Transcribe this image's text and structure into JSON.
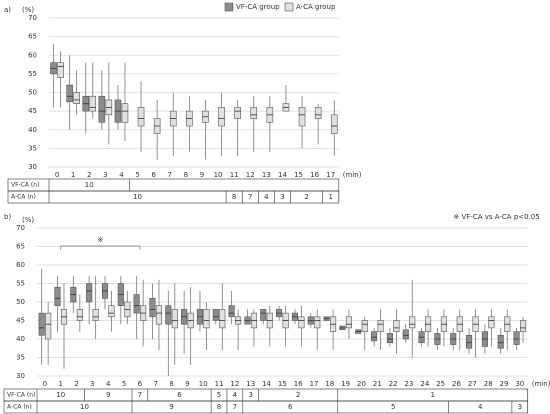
{
  "chart_data": [
    {
      "type": "box",
      "panel": "a)",
      "ylabel": "(%)",
      "xlabel": "(min)",
      "ylim": [
        30,
        70
      ],
      "yticks": [
        30,
        35,
        40,
        45,
        50,
        55,
        60,
        65,
        70
      ],
      "grid": true,
      "legend": "top",
      "categories": [
        "0",
        "1",
        "2",
        "3",
        "4",
        "5",
        "6",
        "7",
        "8",
        "9",
        "10",
        "11",
        "12",
        "13",
        "14",
        "15",
        "16",
        "17"
      ],
      "series": [
        {
          "name": "VF-CA group",
          "color": "#8c8c8c",
          "values": [
            {
              "min": 46,
              "q1": 55,
              "median": 56.5,
              "q3": 58,
              "max": 63
            },
            {
              "min": 40,
              "q1": 47.5,
              "median": 49,
              "q3": 52,
              "max": 60
            },
            {
              "min": 39,
              "q1": 45,
              "median": 47,
              "q3": 49,
              "max": 58
            },
            {
              "min": 40,
              "q1": 42,
              "median": 45,
              "q3": 49,
              "max": 56
            },
            {
              "min": 40,
              "q1": 42,
              "median": 45,
              "q3": 48,
              "max": 52
            },
            null,
            null,
            null,
            null,
            null,
            null,
            null,
            null,
            null,
            null,
            null,
            null,
            null
          ]
        },
        {
          "name": "A-CA group",
          "color": "#e0e0e0",
          "values": [
            {
              "min": 46,
              "q1": 54,
              "median": 57,
              "q3": 58,
              "max": 61
            },
            {
              "min": 44,
              "q1": 47,
              "median": 48,
              "q3": 50,
              "max": 56
            },
            {
              "min": 43,
              "q1": 45,
              "median": 46,
              "q3": 49,
              "max": 58
            },
            {
              "min": 36,
              "q1": 44,
              "median": 46,
              "q3": 48,
              "max": 58
            },
            {
              "min": 37,
              "q1": 42,
              "median": 45,
              "q3": 47,
              "max": 58
            },
            {
              "min": 34,
              "q1": 41,
              "median": 43,
              "q3": 46,
              "max": 53
            },
            {
              "min": 32,
              "q1": 39,
              "median": 41,
              "q3": 43,
              "max": 48
            },
            {
              "min": 33,
              "q1": 41,
              "median": 43,
              "q3": 45,
              "max": 50
            },
            {
              "min": 34,
              "q1": 41,
              "median": 43,
              "q3": 45,
              "max": 49
            },
            {
              "min": 32,
              "q1": 42,
              "median": 43.5,
              "q3": 45,
              "max": 48
            },
            {
              "min": 33,
              "q1": 41,
              "median": 43,
              "q3": 46,
              "max": 50
            },
            {
              "min": 33,
              "q1": 43,
              "median": 45,
              "q3": 46,
              "max": 48
            },
            {
              "min": 34,
              "q1": 43,
              "median": 44,
              "q3": 46,
              "max": 49
            },
            {
              "min": 34,
              "q1": 42,
              "median": 44,
              "q3": 46,
              "max": 49
            },
            {
              "min": 45,
              "q1": 45,
              "median": 46,
              "q3": 47,
              "max": 52
            },
            {
              "min": 35,
              "q1": 41,
              "median": 44,
              "q3": 46,
              "max": 49
            },
            {
              "min": 36,
              "q1": 43,
              "median": 44,
              "q3": 46,
              "max": 47
            },
            {
              "min": 33,
              "q1": 39,
              "median": 41,
              "q3": 44,
              "max": 48
            }
          ]
        }
      ],
      "table": [
        {
          "label": "VF-CA (n)",
          "cells": [
            {
              "text": "10",
              "from": "0",
              "to": "4"
            }
          ]
        },
        {
          "label": "A-CA (n)",
          "cells": [
            {
              "text": "10",
              "from": "0",
              "to": "10"
            },
            {
              "text": "8",
              "from": "11",
              "to": "11"
            },
            {
              "text": "7",
              "from": "12",
              "to": "12"
            },
            {
              "text": "4",
              "from": "13",
              "to": "13"
            },
            {
              "text": "3",
              "from": "14",
              "to": "14"
            },
            {
              "text": "2",
              "from": "15",
              "to": "16"
            },
            {
              "text": "1",
              "from": "17",
              "to": "17"
            }
          ]
        }
      ]
    },
    {
      "type": "box",
      "panel": "b)",
      "ylabel": "(%)",
      "xlabel": "(min)",
      "note": "※ VF-CA vs A-CA  p<0.05",
      "ylim": [
        30,
        70
      ],
      "yticks": [
        30,
        35,
        40,
        45,
        50,
        55,
        60,
        65,
        70
      ],
      "grid": true,
      "bracket": {
        "text": "※",
        "from": "1",
        "to": "6"
      },
      "categories": [
        "0",
        "1",
        "2",
        "3",
        "4",
        "5",
        "6",
        "7",
        "8",
        "9",
        "10",
        "11",
        "12",
        "13",
        "14",
        "15",
        "16",
        "17",
        "18",
        "19",
        "20",
        "21",
        "22",
        "23",
        "24",
        "25",
        "26",
        "27",
        "28",
        "29",
        "30"
      ],
      "series": [
        {
          "color": "#8c8c8c",
          "values": [
            {
              "min": 33,
              "q1": 41,
              "median": 43,
              "q3": 47,
              "max": 59
            },
            {
              "min": 42,
              "q1": 49,
              "median": 51,
              "q3": 54,
              "max": 57
            },
            {
              "min": 47,
              "q1": 50,
              "median": 52,
              "q3": 54,
              "max": 57
            },
            {
              "min": 44,
              "q1": 50,
              "median": 53,
              "q3": 55,
              "max": 57
            },
            {
              "min": 48,
              "q1": 51,
              "median": 53,
              "q3": 55,
              "max": 57
            },
            {
              "min": 44,
              "q1": 49,
              "median": 52,
              "q3": 55,
              "max": 57
            },
            {
              "min": 40,
              "q1": 47,
              "median": 49,
              "q3": 52,
              "max": 57
            },
            {
              "min": 40,
              "q1": 46,
              "median": 48,
              "q3": 51,
              "max": 55
            },
            {
              "min": 30,
              "q1": 44,
              "median": 47,
              "q3": 49,
              "max": 53
            },
            {
              "min": 36,
              "q1": 44,
              "median": 46,
              "q3": 48,
              "max": 53
            },
            {
              "min": 42,
              "q1": 44,
              "median": 46,
              "q3": 48,
              "max": 53
            },
            {
              "min": 44,
              "q1": 45,
              "median": 46,
              "q3": 48,
              "max": 48
            },
            {
              "min": 44,
              "q1": 46,
              "median": 47,
              "q3": 49,
              "max": 53
            },
            {
              "min": 44,
              "q1": 44,
              "median": 45,
              "q3": 46,
              "max": 48
            },
            {
              "min": 44,
              "q1": 45,
              "median": 47,
              "q3": 48,
              "max": 48
            },
            {
              "min": 45,
              "q1": 46,
              "median": 47,
              "q3": 48,
              "max": 49
            },
            {
              "min": 44,
              "q1": 45,
              "median": 46,
              "q3": 47,
              "max": 48
            },
            {
              "min": 43,
              "q1": 44,
              "median": 45,
              "q3": 46,
              "max": 47
            },
            {
              "min": 45,
              "q1": 45,
              "median": 45.5,
              "q3": 46,
              "max": 46
            },
            {
              "min": 42.5,
              "q1": 42.5,
              "median": 43,
              "q3": 43.5,
              "max": 43.5
            },
            {
              "min": 41.5,
              "q1": 41.5,
              "median": 42,
              "q3": 42.5,
              "max": 42.5
            },
            {
              "min": 38,
              "q1": 39.5,
              "median": 40.5,
              "q3": 42,
              "max": 43
            },
            {
              "min": 38,
              "q1": 39,
              "median": 40,
              "q3": 41.5,
              "max": 43
            },
            {
              "min": 39,
              "q1": 40,
              "median": 41,
              "q3": 42.5,
              "max": 44
            },
            {
              "min": 38,
              "q1": 39,
              "median": 40.5,
              "q3": 42,
              "max": 43
            },
            {
              "min": 37,
              "q1": 38.5,
              "median": 40,
              "q3": 41.5,
              "max": 43
            },
            {
              "min": 37,
              "q1": 38.5,
              "median": 40,
              "q3": 41.5,
              "max": 43
            },
            {
              "min": 36,
              "q1": 37.5,
              "median": 39,
              "q3": 41,
              "max": 43
            },
            {
              "min": 36,
              "q1": 38,
              "median": 40,
              "q3": 42,
              "max": 44
            },
            {
              "min": 36,
              "q1": 37.5,
              "median": 39,
              "q3": 41,
              "max": 43
            },
            {
              "min": 37,
              "q1": 38.5,
              "median": 40,
              "q3": 42,
              "max": 43
            }
          ]
        },
        {
          "color": "#e0e0e0",
          "values": [
            {
              "min": 33,
              "q1": 40,
              "median": 44,
              "q3": 47,
              "max": 50
            },
            {
              "min": 32,
              "q1": 44,
              "median": 46,
              "q3": 48,
              "max": 55
            },
            {
              "min": 42,
              "q1": 45,
              "median": 46,
              "q3": 48,
              "max": 52
            },
            {
              "min": 40,
              "q1": 45,
              "median": 46,
              "q3": 48,
              "max": 57
            },
            {
              "min": 42,
              "q1": 46,
              "median": 47,
              "q3": 49,
              "max": 53
            },
            {
              "min": 44,
              "q1": 46,
              "median": 48,
              "q3": 50,
              "max": 53
            },
            {
              "min": 38,
              "q1": 45,
              "median": 47,
              "q3": 49,
              "max": 56
            },
            {
              "min": 37,
              "q1": 44,
              "median": 47,
              "q3": 49,
              "max": 56
            },
            {
              "min": 33,
              "q1": 43,
              "median": 45,
              "q3": 48,
              "max": 55
            },
            {
              "min": 33,
              "q1": 43,
              "median": 45,
              "q3": 47,
              "max": 54
            },
            {
              "min": 37,
              "q1": 43,
              "median": 45,
              "q3": 48,
              "max": 50
            },
            {
              "min": 37,
              "q1": 43,
              "median": 45,
              "q3": 48,
              "max": 55
            },
            {
              "min": 37,
              "q1": 44,
              "median": 45,
              "q3": 46,
              "max": 48
            },
            {
              "min": 38,
              "q1": 43,
              "median": 45,
              "q3": 47,
              "max": 48
            },
            {
              "min": 38,
              "q1": 43,
              "median": 45,
              "q3": 47,
              "max": 49
            },
            {
              "min": 38,
              "q1": 43,
              "median": 45,
              "q3": 47,
              "max": 49
            },
            {
              "min": 38,
              "q1": 43,
              "median": 45,
              "q3": 46,
              "max": 49
            },
            {
              "min": 37,
              "q1": 43,
              "median": 45,
              "q3": 46,
              "max": 48
            },
            {
              "min": 37,
              "q1": 42,
              "median": 44,
              "q3": 46,
              "max": 48
            },
            {
              "min": 40,
              "q1": 43,
              "median": 44,
              "q3": 46,
              "max": 48
            },
            {
              "min": 37,
              "q1": 42,
              "median": 44,
              "q3": 45,
              "max": 46
            },
            {
              "min": 37,
              "q1": 42,
              "median": 44,
              "q3": 45,
              "max": 48
            },
            {
              "min": 36,
              "q1": 42,
              "median": 43,
              "q3": 45,
              "max": 48
            },
            {
              "min": 35,
              "q1": 43,
              "median": 44,
              "q3": 46,
              "max": 56
            },
            {
              "min": 38,
              "q1": 42,
              "median": 44,
              "q3": 46,
              "max": 48
            },
            {
              "min": 38,
              "q1": 42,
              "median": 44,
              "q3": 46,
              "max": 48
            },
            {
              "min": 37,
              "q1": 42,
              "median": 44,
              "q3": 46,
              "max": 48
            },
            {
              "min": 35,
              "q1": 42,
              "median": 44,
              "q3": 46,
              "max": 48
            },
            {
              "min": 38,
              "q1": 43,
              "median": 45,
              "q3": 46,
              "max": 48
            },
            {
              "min": 37,
              "q1": 42,
              "median": 44,
              "q3": 46,
              "max": 48
            },
            {
              "min": 39,
              "q1": 42,
              "median": 43,
              "q3": 45,
              "max": 46
            }
          ]
        }
      ],
      "table": [
        {
          "label": "VF-CA (n)",
          "cells": [
            {
              "text": "10",
              "from": "0",
              "to": "2"
            },
            {
              "text": "9",
              "from": "3",
              "to": "5"
            },
            {
              "text": "7",
              "from": "6",
              "to": "6"
            },
            {
              "text": "6",
              "from": "7",
              "to": "10"
            },
            {
              "text": "5",
              "from": "11",
              "to": "11"
            },
            {
              "text": "4",
              "from": "12",
              "to": "12"
            },
            {
              "text": "3",
              "from": "13",
              "to": "13"
            },
            {
              "text": "2",
              "from": "14",
              "to": "18"
            },
            {
              "text": "1",
              "from": "19",
              "to": "30"
            }
          ]
        },
        {
          "label": "A-CA (n)",
          "cells": [
            {
              "text": "10",
              "from": "0",
              "to": "5"
            },
            {
              "text": "9",
              "from": "6",
              "to": "10"
            },
            {
              "text": "8",
              "from": "11",
              "to": "11"
            },
            {
              "text": "7",
              "from": "12",
              "to": "12"
            },
            {
              "text": "6",
              "from": "13",
              "to": "18"
            },
            {
              "text": "5",
              "from": "19",
              "to": "25"
            },
            {
              "text": "4",
              "from": "26",
              "to": "29"
            },
            {
              "text": "3",
              "from": "30",
              "to": "30"
            }
          ]
        }
      ]
    }
  ]
}
